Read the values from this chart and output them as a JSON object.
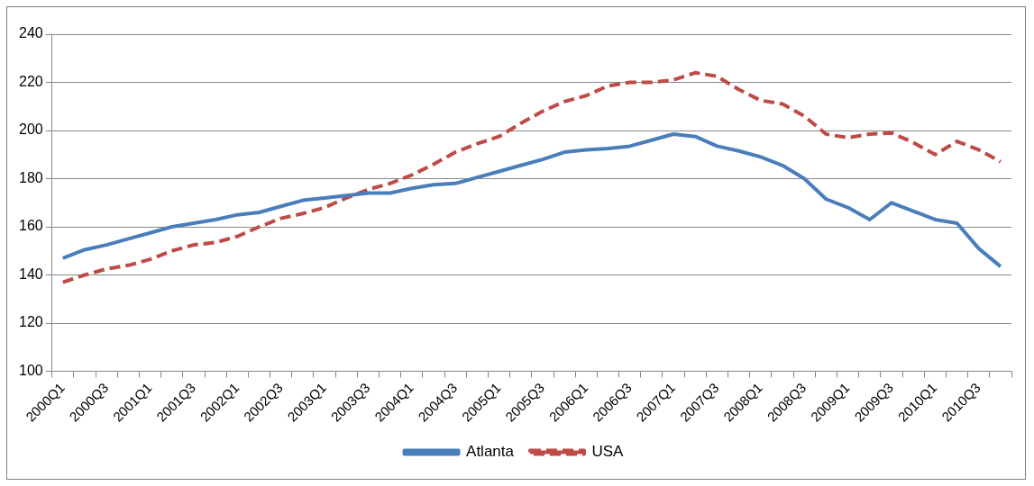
{
  "chart_data": {
    "type": "line",
    "categories": [
      "2000Q1",
      null,
      "2000Q3",
      null,
      "2001Q1",
      null,
      "2001Q3",
      null,
      "2002Q1",
      null,
      "2002Q3",
      null,
      "2003Q1",
      null,
      "2003Q3",
      null,
      "2004Q1",
      null,
      "2004Q3",
      null,
      "2005Q1",
      null,
      "2005Q3",
      null,
      "2006Q1",
      null,
      "2006Q3",
      null,
      "2007Q1",
      null,
      "2007Q3",
      null,
      "2008Q1",
      null,
      "2008Q3",
      null,
      "2009Q1",
      null,
      "2009Q3",
      null,
      "2010Q1",
      null,
      "2010Q3",
      null
    ],
    "series": [
      {
        "name": "Atlanta",
        "color": "#4a7ebb",
        "line_style": "solid",
        "values": [
          147,
          150.5,
          152.5,
          155,
          157.5,
          160,
          161.5,
          163,
          165,
          166,
          168.5,
          171,
          172,
          173,
          174,
          174,
          176,
          177.5,
          178,
          180.5,
          183,
          185.5,
          188,
          191,
          192,
          192.5,
          193.5,
          196,
          198.5,
          197.5,
          193.5,
          191.5,
          189,
          185.5,
          180,
          171.5,
          168,
          163,
          170,
          166.5,
          163,
          161.5,
          151,
          143.5
        ]
      },
      {
        "name": "USA",
        "color": "#be4b48",
        "line_style": "dashed",
        "values": [
          137,
          140,
          142.5,
          144,
          146.5,
          150,
          152.5,
          153.5,
          156,
          160,
          163.5,
          165.5,
          168,
          172,
          175.5,
          178,
          181.5,
          186,
          191,
          194.5,
          197.5,
          203,
          208,
          212,
          214.5,
          218.5,
          220,
          220,
          221,
          224,
          222.5,
          217,
          212.5,
          211,
          206,
          198.5,
          197,
          198.5,
          199,
          195,
          190,
          195.5,
          192,
          187
        ]
      }
    ],
    "ylim": [
      100,
      240
    ],
    "yticks": [
      100,
      120,
      140,
      160,
      180,
      200,
      220,
      240
    ],
    "grid": "y",
    "legend": "bottom",
    "marker": "none"
  }
}
